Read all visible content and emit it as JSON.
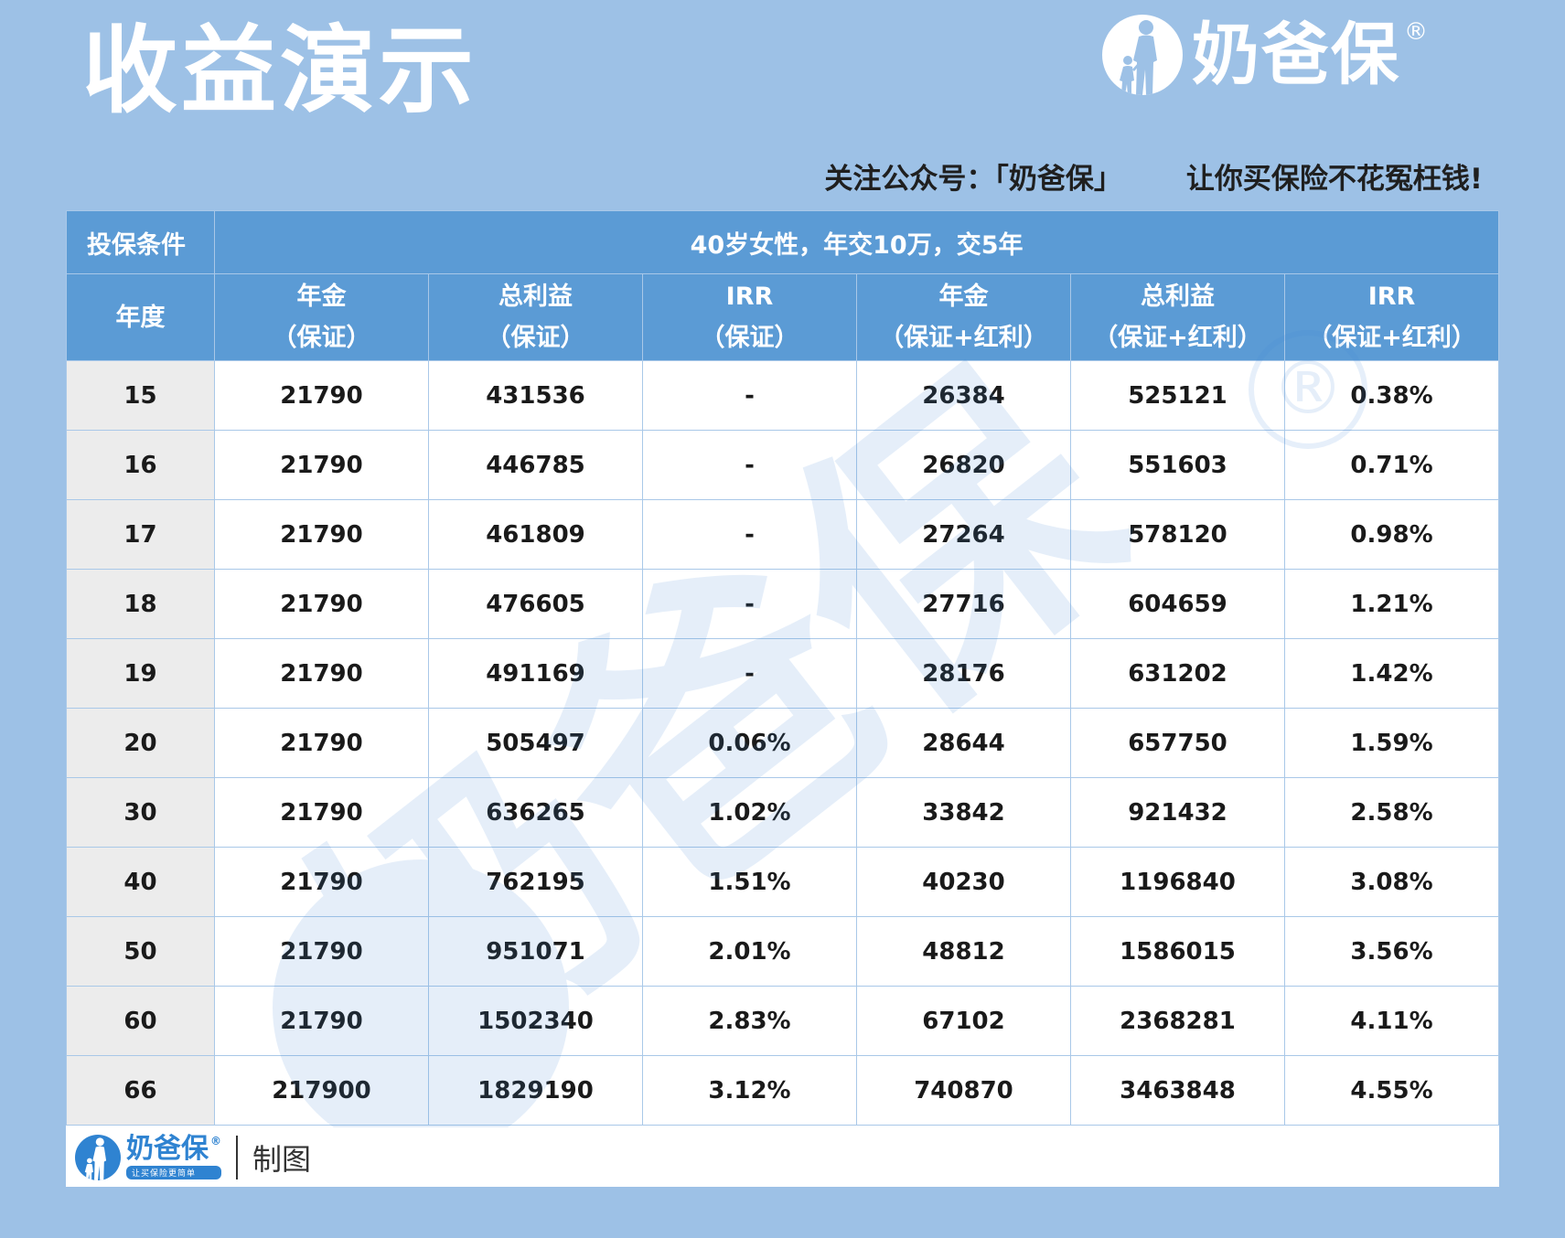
{
  "header": {
    "title": "收益演示",
    "brand_name": "奶爸保",
    "brand_reg": "®"
  },
  "slogan": {
    "follow": "关注公众号：「奶爸保」",
    "tagline": "让你买保险不花冤枉钱!"
  },
  "table": {
    "condition_label": "投保条件",
    "condition_value": "40岁女性，年交10万，交5年",
    "year_label": "年度",
    "columns": [
      {
        "title": "年金",
        "sub": "（保证）"
      },
      {
        "title": "总利益",
        "sub": "（保证）"
      },
      {
        "title": "IRR",
        "sub": "（保证）"
      },
      {
        "title": "年金",
        "sub": "（保证+红利）"
      },
      {
        "title": "总利益",
        "sub": "（保证+红利）"
      },
      {
        "title": "IRR",
        "sub": "（保证+红利）"
      }
    ],
    "rows": [
      {
        "year": "15",
        "cells": [
          "21790",
          "431536",
          "-",
          "26384",
          "525121",
          "0.38%"
        ]
      },
      {
        "year": "16",
        "cells": [
          "21790",
          "446785",
          "-",
          "26820",
          "551603",
          "0.71%"
        ]
      },
      {
        "year": "17",
        "cells": [
          "21790",
          "461809",
          "-",
          "27264",
          "578120",
          "0.98%"
        ]
      },
      {
        "year": "18",
        "cells": [
          "21790",
          "476605",
          "-",
          "27716",
          "604659",
          "1.21%"
        ]
      },
      {
        "year": "19",
        "cells": [
          "21790",
          "491169",
          "-",
          "28176",
          "631202",
          "1.42%"
        ]
      },
      {
        "year": "20",
        "cells": [
          "21790",
          "505497",
          "0.06%",
          "28644",
          "657750",
          "1.59%"
        ]
      },
      {
        "year": "30",
        "cells": [
          "21790",
          "636265",
          "1.02%",
          "33842",
          "921432",
          "2.58%"
        ]
      },
      {
        "year": "40",
        "cells": [
          "21790",
          "762195",
          "1.51%",
          "40230",
          "1196840",
          "3.08%"
        ]
      },
      {
        "year": "50",
        "cells": [
          "21790",
          "951071",
          "2.01%",
          "48812",
          "1586015",
          "3.56%"
        ]
      },
      {
        "year": "60",
        "cells": [
          "21790",
          "1502340",
          "2.83%",
          "67102",
          "2368281",
          "4.11%"
        ]
      },
      {
        "year": "66",
        "cells": [
          "217900",
          "1829190",
          "3.12%",
          "740870",
          "3463848",
          "4.55%"
        ]
      }
    ]
  },
  "watermark": {
    "text": "奶爸保",
    "reg": "®"
  },
  "footer": {
    "brand": "奶爸保",
    "brand_reg": "®",
    "tagline": "让买保险更简单",
    "label": "制图"
  },
  "icons": {
    "logo": "parent-child-silhouette-icon"
  },
  "colors": {
    "background": "#9dc1e6",
    "header_cell": "#5b9bd5",
    "year_cell": "#ececec",
    "brand_blue": "#2f83d1"
  }
}
